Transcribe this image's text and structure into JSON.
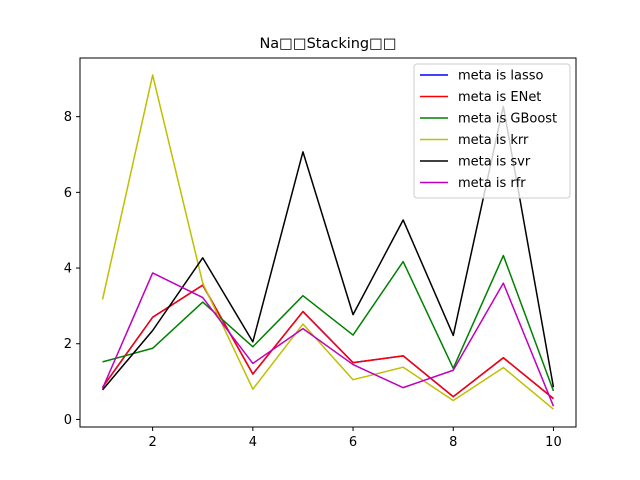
{
  "chart_data": {
    "type": "line",
    "title": "Na□□Stacking□□",
    "xlabel": "",
    "ylabel": "",
    "x": [
      1,
      2,
      3,
      4,
      5,
      6,
      7,
      8,
      9,
      10
    ],
    "xlim": [
      0.55,
      10.45
    ],
    "ylim": [
      -0.2,
      9.55
    ],
    "xticks": [
      2,
      4,
      6,
      8,
      10
    ],
    "yticks": [
      0,
      2,
      4,
      6,
      8
    ],
    "grid": false,
    "legend_position": "top-right",
    "series": [
      {
        "name": "meta is lasso",
        "color": "#0000ff",
        "values": [
          0.85,
          2.7,
          3.55,
          1.2,
          2.85,
          1.5,
          1.68,
          0.6,
          1.63,
          0.55
        ]
      },
      {
        "name": "meta is ENet",
        "color": "#ff0000",
        "values": [
          0.85,
          2.7,
          3.55,
          1.2,
          2.85,
          1.5,
          1.68,
          0.6,
          1.63,
          0.55
        ]
      },
      {
        "name": "meta is GBoost",
        "color": "#008000",
        "values": [
          1.52,
          1.88,
          3.1,
          1.92,
          3.27,
          2.23,
          4.17,
          1.35,
          4.33,
          0.75
        ]
      },
      {
        "name": "meta is krr",
        "color": "#bfbf00",
        "values": [
          3.17,
          9.1,
          3.6,
          0.8,
          2.52,
          1.05,
          1.38,
          0.5,
          1.37,
          0.27
        ]
      },
      {
        "name": "meta is svr",
        "color": "#000000",
        "values": [
          0.78,
          2.35,
          4.27,
          2.05,
          7.07,
          2.77,
          5.27,
          2.22,
          8.27,
          0.85
        ]
      },
      {
        "name": "meta is rfr",
        "color": "#bf00bf",
        "values": [
          0.82,
          3.87,
          3.22,
          1.48,
          2.4,
          1.45,
          0.84,
          1.3,
          3.6,
          0.35
        ]
      }
    ]
  }
}
